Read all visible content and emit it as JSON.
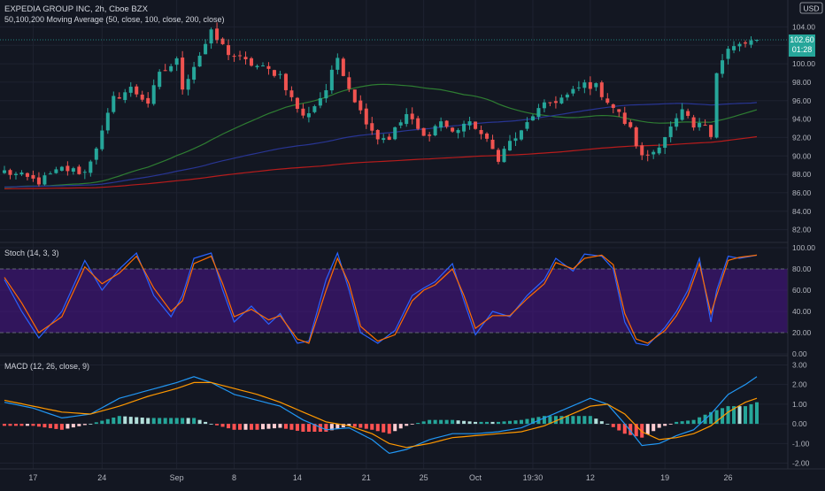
{
  "header": {
    "symbol": "EXPEDIA GROUP INC, 2h, Cboe BZX",
    "ma_label": "50,100,200 Moving Average (50, close, 100, close, 200, close)",
    "currency": "USD"
  },
  "price_badge": {
    "value": "102.60",
    "countdown": "01:28"
  },
  "colors": {
    "background": "#131722",
    "grid": "#1e2230",
    "up": "#26a69a",
    "down": "#ef5350",
    "ma50": "#2e7d32",
    "ma100": "#283593",
    "ma200": "#b71c1c",
    "stoch_k": "#2962ff",
    "stoch_d": "#ff6d00",
    "stoch_band": "#4a148c",
    "macd_line": "#2196f3",
    "signal_line": "#ff9800",
    "badge": "#26a69a",
    "axis_text": "#b2b5be"
  },
  "chart_data": [
    {
      "type": "candlestick",
      "title": "EXPEDIA GROUP INC, 2h, Cboe BZX",
      "ylim": [
        81,
        105
      ],
      "y_ticks": [
        "82.00",
        "84.00",
        "86.00",
        "88.00",
        "90.00",
        "92.00",
        "94.00",
        "96.00",
        "98.00",
        "100.00",
        "102.00",
        "104.00"
      ],
      "x_ticks": [
        "17",
        "24",
        "Sep",
        "8",
        "14",
        "21",
        "25",
        "Oct",
        "19:30",
        "12",
        "19",
        "26"
      ],
      "x_tick_bars": [
        5,
        17,
        30,
        40,
        51,
        63,
        73,
        82,
        92,
        102,
        115,
        126
      ],
      "bar_count": 132,
      "key_closes": [
        [
          0,
          88.3
        ],
        [
          6,
          87.2
        ],
        [
          10,
          88.6
        ],
        [
          14,
          88.2
        ],
        [
          17,
          92.5
        ],
        [
          19,
          96.2
        ],
        [
          22,
          97.3
        ],
        [
          25,
          95.8
        ],
        [
          27,
          98.8
        ],
        [
          30,
          100.3
        ],
        [
          31,
          97.5
        ],
        [
          36,
          103.3
        ],
        [
          39,
          101.2
        ],
        [
          42,
          100.2
        ],
        [
          45,
          99.5
        ],
        [
          48,
          98.8
        ],
        [
          50,
          96.2
        ],
        [
          52,
          94.2
        ],
        [
          54,
          95.5
        ],
        [
          56,
          97.2
        ],
        [
          58,
          100.7
        ],
        [
          60,
          97.5
        ],
        [
          62,
          94.8
        ],
        [
          65,
          92.0
        ],
        [
          67,
          92.0
        ],
        [
          70,
          94.5
        ],
        [
          73,
          92.0
        ],
        [
          76,
          93.8
        ],
        [
          78,
          92.5
        ],
        [
          80,
          93.5
        ],
        [
          82,
          93.2
        ],
        [
          84,
          91.5
        ],
        [
          86,
          89.8
        ],
        [
          88,
          91.5
        ],
        [
          90,
          92.5
        ],
        [
          92,
          94.5
        ],
        [
          95,
          95.8
        ],
        [
          98,
          96.5
        ],
        [
          101,
          97.8
        ],
        [
          103,
          97.5
        ],
        [
          105,
          96.0
        ],
        [
          107,
          94.5
        ],
        [
          109,
          92.8
        ],
        [
          111,
          89.8
        ],
        [
          113,
          90.5
        ],
        [
          115,
          92.2
        ],
        [
          117,
          93.8
        ],
        [
          118,
          94.8
        ],
        [
          120,
          93.0
        ],
        [
          122,
          93.5
        ],
        [
          123,
          92.5
        ],
        [
          124,
          99.2
        ],
        [
          126,
          101.5
        ],
        [
          128,
          102.0
        ],
        [
          131,
          102.6
        ]
      ],
      "moving_averages": [
        {
          "name": "MA 50",
          "period": 50,
          "color": "#2e7d32"
        },
        {
          "name": "MA 100",
          "period": 100,
          "color": "#283593"
        },
        {
          "name": "MA 200",
          "period": 200,
          "color": "#b71c1c"
        }
      ],
      "last_price": 102.6
    },
    {
      "type": "line",
      "title": "Stoch (14, 3, 3)",
      "ylim": [
        0,
        100
      ],
      "y_ticks": [
        "0.00",
        "20.00",
        "40.00",
        "60.00",
        "80.00",
        "100.00"
      ],
      "band": [
        20,
        80
      ],
      "k_points": [
        [
          0,
          70
        ],
        [
          3,
          40
        ],
        [
          6,
          15
        ],
        [
          10,
          40
        ],
        [
          14,
          88
        ],
        [
          17,
          60
        ],
        [
          20,
          80
        ],
        [
          23,
          95
        ],
        [
          26,
          55
        ],
        [
          29,
          35
        ],
        [
          31,
          55
        ],
        [
          33,
          90
        ],
        [
          36,
          95
        ],
        [
          38,
          60
        ],
        [
          40,
          30
        ],
        [
          43,
          45
        ],
        [
          46,
          28
        ],
        [
          48,
          38
        ],
        [
          51,
          10
        ],
        [
          53,
          12
        ],
        [
          56,
          70
        ],
        [
          58,
          95
        ],
        [
          60,
          60
        ],
        [
          62,
          20
        ],
        [
          65,
          10
        ],
        [
          68,
          22
        ],
        [
          71,
          55
        ],
        [
          73,
          62
        ],
        [
          75,
          68
        ],
        [
          78,
          85
        ],
        [
          80,
          50
        ],
        [
          82,
          18
        ],
        [
          85,
          40
        ],
        [
          88,
          35
        ],
        [
          91,
          55
        ],
        [
          94,
          70
        ],
        [
          96,
          90
        ],
        [
          99,
          78
        ],
        [
          101,
          94
        ],
        [
          104,
          92
        ],
        [
          106,
          80
        ],
        [
          108,
          30
        ],
        [
          110,
          10
        ],
        [
          112,
          8
        ],
        [
          115,
          25
        ],
        [
          117,
          40
        ],
        [
          119,
          60
        ],
        [
          121,
          90
        ],
        [
          123,
          30
        ],
        [
          124,
          60
        ],
        [
          126,
          92
        ],
        [
          128,
          90
        ],
        [
          131,
          93
        ]
      ],
      "d_points": [
        [
          0,
          72
        ],
        [
          3,
          48
        ],
        [
          6,
          20
        ],
        [
          10,
          35
        ],
        [
          14,
          82
        ],
        [
          17,
          66
        ],
        [
          20,
          76
        ],
        [
          23,
          92
        ],
        [
          26,
          62
        ],
        [
          29,
          40
        ],
        [
          31,
          50
        ],
        [
          33,
          85
        ],
        [
          36,
          92
        ],
        [
          38,
          66
        ],
        [
          40,
          35
        ],
        [
          43,
          42
        ],
        [
          46,
          32
        ],
        [
          48,
          36
        ],
        [
          51,
          14
        ],
        [
          53,
          10
        ],
        [
          56,
          60
        ],
        [
          58,
          90
        ],
        [
          60,
          66
        ],
        [
          62,
          26
        ],
        [
          65,
          12
        ],
        [
          68,
          18
        ],
        [
          71,
          50
        ],
        [
          73,
          60
        ],
        [
          75,
          65
        ],
        [
          78,
          80
        ],
        [
          80,
          55
        ],
        [
          82,
          24
        ],
        [
          85,
          36
        ],
        [
          88,
          36
        ],
        [
          91,
          52
        ],
        [
          94,
          66
        ],
        [
          96,
          86
        ],
        [
          99,
          80
        ],
        [
          101,
          90
        ],
        [
          104,
          93
        ],
        [
          106,
          84
        ],
        [
          108,
          38
        ],
        [
          110,
          14
        ],
        [
          112,
          10
        ],
        [
          115,
          22
        ],
        [
          117,
          36
        ],
        [
          119,
          55
        ],
        [
          121,
          85
        ],
        [
          123,
          38
        ],
        [
          124,
          55
        ],
        [
          126,
          88
        ],
        [
          128,
          91
        ],
        [
          131,
          93
        ]
      ]
    },
    {
      "type": "bar",
      "title": "MACD (12, 26, close, 9)",
      "ylim": [
        -2.2,
        3.2
      ],
      "y_ticks": [
        "-2.00",
        "-1.00",
        "0.00",
        "1.00",
        "2.00",
        "3.00"
      ],
      "macd_points": [
        [
          0,
          1.1
        ],
        [
          5,
          0.8
        ],
        [
          10,
          0.3
        ],
        [
          15,
          0.5
        ],
        [
          20,
          1.3
        ],
        [
          25,
          1.7
        ],
        [
          30,
          2.1
        ],
        [
          33,
          2.4
        ],
        [
          36,
          2.1
        ],
        [
          40,
          1.5
        ],
        [
          44,
          1.2
        ],
        [
          48,
          0.9
        ],
        [
          52,
          0.2
        ],
        [
          56,
          -0.3
        ],
        [
          60,
          -0.2
        ],
        [
          64,
          -0.8
        ],
        [
          67,
          -1.5
        ],
        [
          70,
          -1.3
        ],
        [
          74,
          -0.8
        ],
        [
          78,
          -0.5
        ],
        [
          82,
          -0.5
        ],
        [
          86,
          -0.4
        ],
        [
          90,
          -0.2
        ],
        [
          94,
          0.3
        ],
        [
          98,
          0.8
        ],
        [
          102,
          1.3
        ],
        [
          105,
          1.0
        ],
        [
          108,
          0.0
        ],
        [
          111,
          -1.1
        ],
        [
          114,
          -1.0
        ],
        [
          117,
          -0.6
        ],
        [
          120,
          -0.3
        ],
        [
          123,
          0.5
        ],
        [
          126,
          1.5
        ],
        [
          129,
          2.0
        ],
        [
          131,
          2.4
        ]
      ],
      "signal_points": [
        [
          0,
          1.2
        ],
        [
          5,
          0.9
        ],
        [
          10,
          0.6
        ],
        [
          15,
          0.5
        ],
        [
          20,
          0.9
        ],
        [
          25,
          1.4
        ],
        [
          30,
          1.8
        ],
        [
          33,
          2.1
        ],
        [
          36,
          2.1
        ],
        [
          40,
          1.8
        ],
        [
          44,
          1.5
        ],
        [
          48,
          1.1
        ],
        [
          52,
          0.6
        ],
        [
          56,
          0.1
        ],
        [
          60,
          -0.1
        ],
        [
          64,
          -0.5
        ],
        [
          67,
          -1.0
        ],
        [
          70,
          -1.2
        ],
        [
          74,
          -1.0
        ],
        [
          78,
          -0.7
        ],
        [
          82,
          -0.6
        ],
        [
          86,
          -0.5
        ],
        [
          90,
          -0.4
        ],
        [
          94,
          -0.1
        ],
        [
          98,
          0.4
        ],
        [
          102,
          0.9
        ],
        [
          105,
          1.0
        ],
        [
          108,
          0.5
        ],
        [
          111,
          -0.4
        ],
        [
          114,
          -0.8
        ],
        [
          117,
          -0.7
        ],
        [
          120,
          -0.5
        ],
        [
          123,
          -0.1
        ],
        [
          126,
          0.6
        ],
        [
          129,
          1.1
        ],
        [
          131,
          1.3
        ]
      ]
    }
  ]
}
